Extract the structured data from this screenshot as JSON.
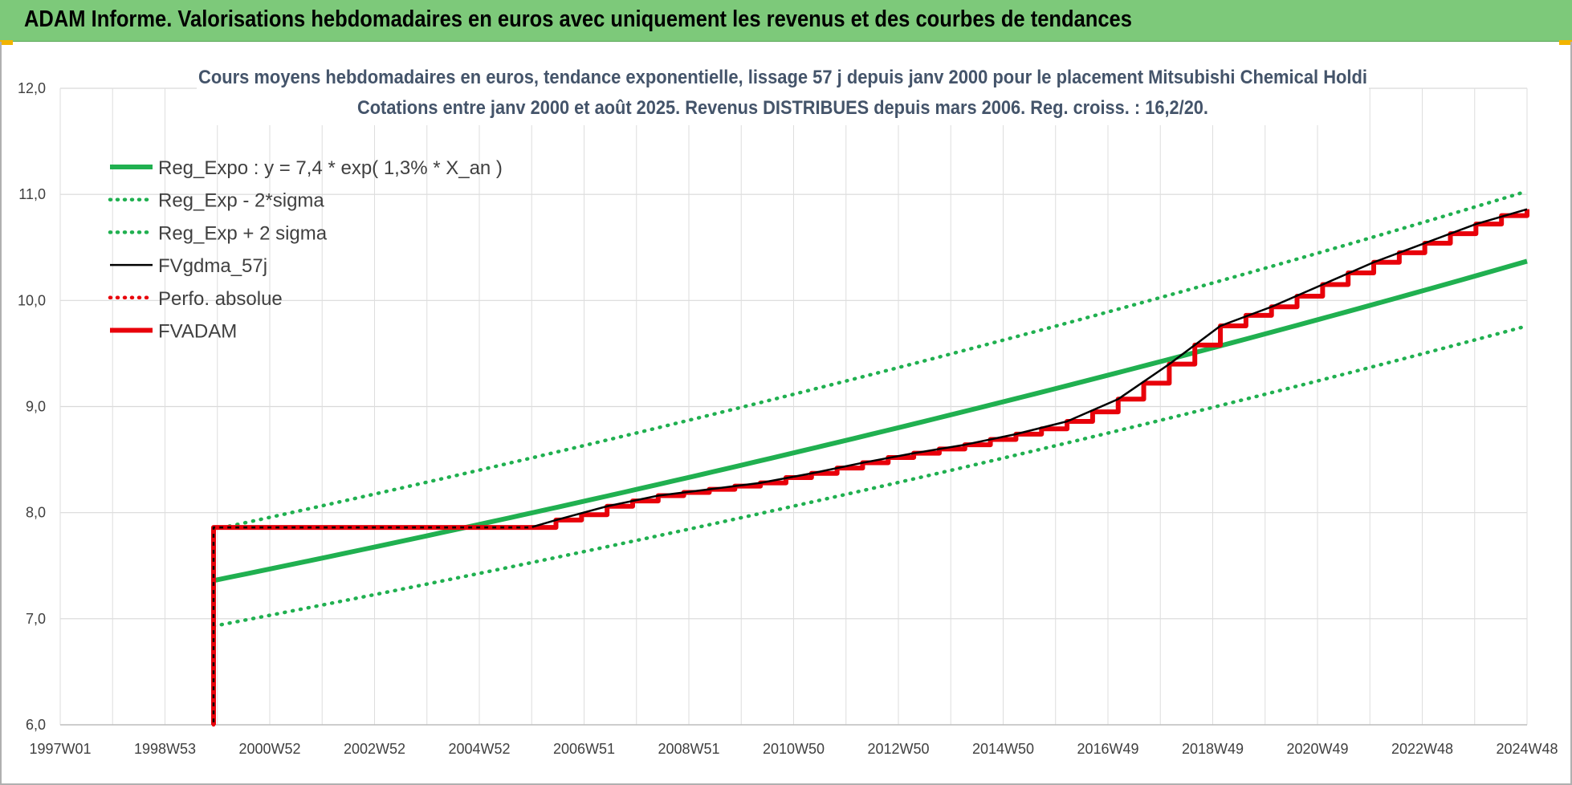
{
  "header": {
    "title": "ADAM Informe. Valorisations hebdomadaires en euros avec uniquement les revenus et des courbes de tendances"
  },
  "colors": {
    "banner": "#7dc97a",
    "trend": "#20b050",
    "fvgdma": "#000000",
    "fvadam": "#e8000a",
    "perfo": "#e8000a"
  },
  "chart_data": {
    "type": "line",
    "title": "Cours moyens hebdomadaires en euros, tendance exponentielle, lissage 57 j depuis janv 2000 pour le placement Mitsubishi Chemical Holdi",
    "subtitle": "Cotations entre janv 2000 et août 2025. Revenus DISTRIBUES depuis mars 2006. Reg. croiss. : 16,2/20.",
    "xlabel": "",
    "ylabel": "",
    "x_ticks": [
      "1997W01",
      "1998W53",
      "2000W52",
      "2002W52",
      "2004W52",
      "2006W51",
      "2008W51",
      "2010W50",
      "2012W50",
      "2014W50",
      "2016W49",
      "2018W49",
      "2020W49",
      "2022W48",
      "2024W48"
    ],
    "xlim": [
      1997.0,
      2025.7
    ],
    "y_ticks": [
      "12,0",
      "11,0",
      "10,0",
      "9,0",
      "8,0",
      "7,0",
      "6,0"
    ],
    "ylim": [
      6.0,
      12.0
    ],
    "grid": true,
    "legend_position": "top-left",
    "series": [
      {
        "name": "Reg_Expo : y = 7,4 * exp( 1,3% *  X_an )",
        "style": "solid-thick",
        "color": "#20b050",
        "x": [
          2000.0,
          2025.7
        ],
        "y": [
          7.36,
          10.37
        ]
      },
      {
        "name": "Reg_Exp - 2*sigma",
        "style": "dotted",
        "color": "#20b050",
        "x": [
          2000.0,
          2025.7
        ],
        "y": [
          6.93,
          9.76
        ]
      },
      {
        "name": "Reg_Exp + 2 sigma",
        "style": "dotted",
        "color": "#20b050",
        "x": [
          2000.0,
          2025.7
        ],
        "y": [
          7.84,
          11.03
        ]
      },
      {
        "name": "FVgdma_57j",
        "style": "solid",
        "color": "#000000",
        "x": [
          2000.0,
          2000.0,
          2006.2,
          2006.7,
          2007.7,
          2008.7,
          2009.7,
          2010.7,
          2011.7,
          2012.7,
          2013.7,
          2014.7,
          2015.7,
          2016.7,
          2017.7,
          2018.7,
          2019.7,
          2020.7,
          2021.7,
          2022.7,
          2023.7,
          2024.7,
          2025.7
        ],
        "y": [
          6.0,
          7.86,
          7.86,
          7.93,
          8.06,
          8.16,
          8.22,
          8.28,
          8.37,
          8.47,
          8.56,
          8.64,
          8.74,
          8.86,
          9.07,
          9.4,
          9.76,
          9.94,
          10.15,
          10.36,
          10.54,
          10.72,
          10.86
        ]
      },
      {
        "name": "Perfo. absolue",
        "style": "dotted",
        "color": "#e8000a",
        "x": [
          2000.0,
          2000.0,
          2006.2
        ],
        "y": [
          6.0,
          7.86,
          7.86
        ]
      },
      {
        "name": "FVADAM",
        "style": "step-thick",
        "color": "#e8000a",
        "x": [
          2000.0,
          2000.0,
          2006.2,
          2006.7,
          2007.2,
          2007.7,
          2008.2,
          2008.7,
          2009.2,
          2009.7,
          2010.2,
          2010.7,
          2011.2,
          2011.7,
          2012.2,
          2012.7,
          2013.2,
          2013.7,
          2014.2,
          2014.7,
          2015.2,
          2015.7,
          2016.2,
          2016.7,
          2017.2,
          2017.7,
          2018.2,
          2018.7,
          2019.2,
          2019.7,
          2020.2,
          2020.7,
          2021.2,
          2021.7,
          2022.2,
          2022.7,
          2023.2,
          2023.7,
          2024.2,
          2024.7,
          2025.2,
          2025.7
        ],
        "y": [
          6.0,
          7.86,
          7.86,
          7.93,
          7.98,
          8.06,
          8.11,
          8.16,
          8.19,
          8.22,
          8.25,
          8.28,
          8.33,
          8.37,
          8.42,
          8.47,
          8.52,
          8.56,
          8.6,
          8.64,
          8.69,
          8.74,
          8.79,
          8.86,
          8.95,
          9.07,
          9.22,
          9.4,
          9.58,
          9.76,
          9.86,
          9.94,
          10.04,
          10.15,
          10.26,
          10.36,
          10.45,
          10.54,
          10.63,
          10.72,
          10.8,
          10.86
        ]
      }
    ]
  }
}
